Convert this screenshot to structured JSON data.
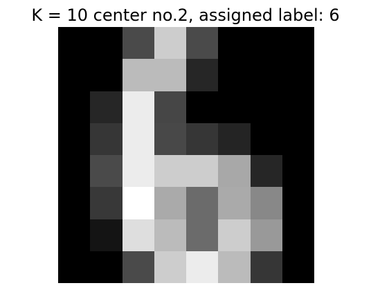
{
  "title": "K = 10 center no.2, assigned label: 6",
  "image": {
    "colormap": "gray",
    "rows": 8,
    "cols": 8,
    "pixels": [
      [
        0,
        0,
        74,
        205,
        74,
        0,
        0,
        0
      ],
      [
        0,
        0,
        187,
        187,
        38,
        0,
        0,
        0
      ],
      [
        0,
        38,
        236,
        70,
        0,
        0,
        0,
        0
      ],
      [
        0,
        54,
        236,
        72,
        54,
        36,
        0,
        0
      ],
      [
        0,
        74,
        236,
        205,
        205,
        168,
        38,
        0
      ],
      [
        0,
        56,
        255,
        170,
        107,
        170,
        136,
        0
      ],
      [
        0,
        20,
        222,
        187,
        107,
        205,
        153,
        0
      ],
      [
        0,
        0,
        74,
        205,
        236,
        187,
        54,
        0
      ]
    ]
  }
}
